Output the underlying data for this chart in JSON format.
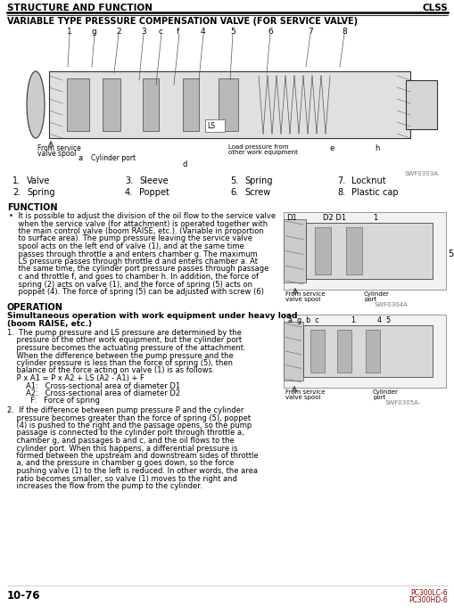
{
  "page_number": "10-76",
  "model_line1": "PC300LC-6",
  "model_line2": "PC300HD-6",
  "header_left": "STRUCTURE AND FUNCTION",
  "header_right": "CLSS",
  "title": "VARIABLE TYPE PRESSURE COMPENSATION VALVE (FOR SERVICE VALVE)",
  "bg_color": "#ffffff",
  "diag1_ref": "SWF0303A",
  "diag2_ref": "SWF0304A",
  "diag3_ref": "SWF0305A-",
  "legend_row1": [
    {
      "num": "1.",
      "label": "Valve"
    },
    {
      "num": "3.",
      "label": "Sleeve"
    },
    {
      "num": "5.",
      "label": "Spring"
    },
    {
      "num": "7.",
      "label": "Locknut"
    }
  ],
  "legend_row2": [
    {
      "num": "2.",
      "label": "Spring"
    },
    {
      "num": "4.",
      "label": "Poppet"
    },
    {
      "num": "6.",
      "label": "Screw"
    },
    {
      "num": "8.",
      "label": "Plastic cap"
    }
  ],
  "function_title": "FUNCTION",
  "function_lines": [
    "•  It is possible to adjust the division of the oil flow to the service valve",
    "    when the service valve (for attachment) is operated together with",
    "    the main control valve (boom RAISE, etc.). (Variable in proportion",
    "    to surface area). The pump pressure leaving the service valve",
    "    spool acts on the left end of valve (1), and at the same time",
    "    passes through throttle a and enters chamber g. The maximum",
    "    LS pressure passes through throttle d and enters chamber a. At",
    "    the same time, the cylinder port pressure passes through passage",
    "    c and throttle f, and goes to chamber h. In addition, the force of",
    "    spring (2) acts on valve (1), and the force of spring (5) acts on",
    "    poppet (4). The force of spring (5) can be adjusted with screw (6)"
  ],
  "operation_title": "OPERATION",
  "operation_sub1": "Simultaneous operation with work equipment under heavy load",
  "operation_sub2": "(boom RAISE, etc.)",
  "op1_lines": [
    "1.  The pump pressure and LS pressure are determined by the",
    "    pressure of the other work equipment, but the cylinder port",
    "    pressure becomes the actuating pressure of the attachment.",
    "    When the difference between the pump pressure and the",
    "    cylinder pressure is less than the force of spring (5), then",
    "    balance of the force acting on valve (1) is as follows.",
    "    P x A1 = P x A2 + LS (A2 - A1) + F",
    "        A1:   Cross-sectional area of diameter D1",
    "        A2:   Cross-sectional area of diameter D2",
    "          F:   Force of spring"
  ],
  "op2_lines": [
    "2.  If the difference between pump pressure P and the cylinder",
    "    pressure becomes greater than the force of spring (5), poppet",
    "    (4) is pushed to the right and the passage opens, so the pump",
    "    passage is connected to the cylinder port through throttle a,",
    "    chamber g, and passages b and c, and the oil flows to the",
    "    cylinder port. When this happens, a differential pressure is",
    "    formed between the upstream and downstream sides of throttle",
    "    a, and the pressure in chamber g goes down, so the force",
    "    pushing valve (1) to the left is reduced. In other words, the area",
    "    ratio becomes smaller, so valve (1) moves to the right and",
    "    increases the flow from the pump to the cylinder."
  ]
}
